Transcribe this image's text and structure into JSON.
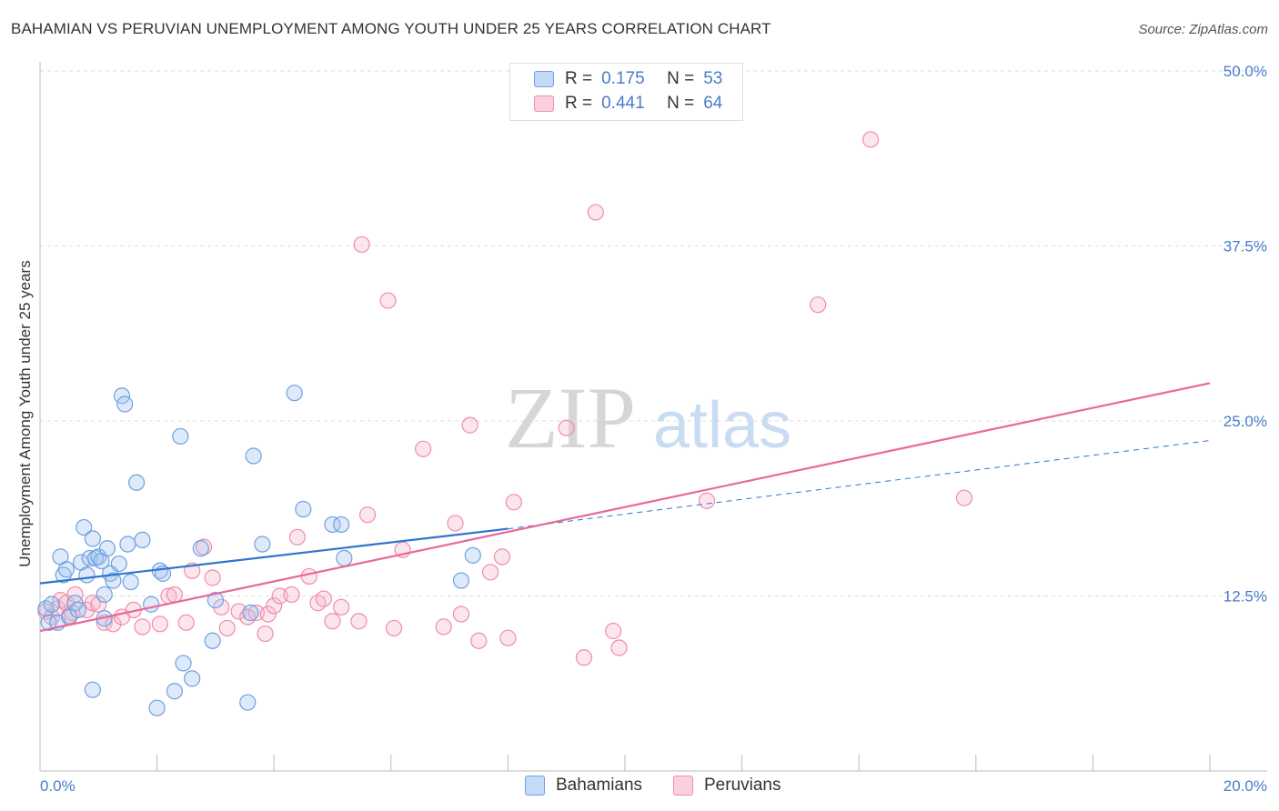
{
  "title": "BAHAMIAN VS PERUVIAN UNEMPLOYMENT AMONG YOUTH UNDER 25 YEARS CORRELATION CHART",
  "source": "Source: ZipAtlas.com",
  "watermark": {
    "zip": "ZIP",
    "atlas": "atlas"
  },
  "legend": [
    {
      "r_label": "R =",
      "r_value": "0.175",
      "n_label": "N =",
      "n_value": "53"
    },
    {
      "r_label": "R =",
      "r_value": "0.441",
      "n_label": "N =",
      "n_value": "64"
    }
  ],
  "chart_data": {
    "type": "scatter",
    "title": "BAHAMIAN VS PERUVIAN UNEMPLOYMENT AMONG YOUTH UNDER 25 YEARS CORRELATION CHART",
    "xlabel": "",
    "ylabel": "Unemployment Among Youth under 25 years",
    "xlim": [
      0,
      20
    ],
    "ylim": [
      0,
      50
    ],
    "x_tick_labels": [
      "0.0%",
      "20.0%"
    ],
    "y_ticks": [
      {
        "value": 12.5,
        "label": "12.5%"
      },
      {
        "value": 25,
        "label": "25.0%"
      },
      {
        "value": 37.5,
        "label": "37.5%"
      },
      {
        "value": 50,
        "label": "50.0%"
      }
    ],
    "colors": {
      "bahamians": "#6fa0e0",
      "peruvians": "#f08cab",
      "bahamians_line": "#2f74d0",
      "peruvians_line": "#e8689a"
    },
    "series": [
      {
        "name": "Bahamians",
        "r": 0.175,
        "n": 53,
        "trend": {
          "x0": 0,
          "y0": 13.4,
          "x1": 8.0,
          "y1": 17.3,
          "dash_x1": 20,
          "dash_y1": 23.6
        },
        "points": [
          [
            0.1,
            11.6
          ],
          [
            0.15,
            10.6
          ],
          [
            0.2,
            11.9
          ],
          [
            0.3,
            10.6
          ],
          [
            0.35,
            15.3
          ],
          [
            0.4,
            14.0
          ],
          [
            0.45,
            14.4
          ],
          [
            0.5,
            11.0
          ],
          [
            0.6,
            12.0
          ],
          [
            0.65,
            11.5
          ],
          [
            0.7,
            14.9
          ],
          [
            0.75,
            17.4
          ],
          [
            0.8,
            14.0
          ],
          [
            0.85,
            15.2
          ],
          [
            0.9,
            16.6
          ],
          [
            0.95,
            15.2
          ],
          [
            1.0,
            15.3
          ],
          [
            1.05,
            15.0
          ],
          [
            1.1,
            12.6
          ],
          [
            1.15,
            15.9
          ],
          [
            1.2,
            14.1
          ],
          [
            1.25,
            13.6
          ],
          [
            1.35,
            14.8
          ],
          [
            1.4,
            26.8
          ],
          [
            1.45,
            26.2
          ],
          [
            1.5,
            16.2
          ],
          [
            1.55,
            13.5
          ],
          [
            1.65,
            20.6
          ],
          [
            1.75,
            16.5
          ],
          [
            1.9,
            11.9
          ],
          [
            2.05,
            14.3
          ],
          [
            2.1,
            14.1
          ],
          [
            2.4,
            23.9
          ],
          [
            2.45,
            7.7
          ],
          [
            2.6,
            6.6
          ],
          [
            2.75,
            15.9
          ],
          [
            2.95,
            9.3
          ],
          [
            3.0,
            12.2
          ],
          [
            3.55,
            4.9
          ],
          [
            3.6,
            11.3
          ],
          [
            3.65,
            22.5
          ],
          [
            3.8,
            16.2
          ],
          [
            4.35,
            27.0
          ],
          [
            4.5,
            18.7
          ],
          [
            5.0,
            17.6
          ],
          [
            5.15,
            17.6
          ],
          [
            5.2,
            15.2
          ],
          [
            7.2,
            13.6
          ],
          [
            7.4,
            15.4
          ],
          [
            0.9,
            5.8
          ],
          [
            2.0,
            4.5
          ],
          [
            2.3,
            5.7
          ],
          [
            1.1,
            10.9
          ]
        ]
      },
      {
        "name": "Peruvians",
        "r": 0.441,
        "n": 64,
        "trend": {
          "x0": 0,
          "y0": 10.0,
          "x1": 20,
          "y1": 27.7
        },
        "points": [
          [
            0.1,
            11.4
          ],
          [
            0.2,
            11.0
          ],
          [
            0.3,
            11.6
          ],
          [
            0.35,
            12.2
          ],
          [
            0.45,
            12.0
          ],
          [
            0.5,
            11.1
          ],
          [
            0.55,
            11.3
          ],
          [
            0.6,
            12.6
          ],
          [
            0.8,
            11.5
          ],
          [
            0.9,
            12.0
          ],
          [
            1.0,
            11.9
          ],
          [
            1.1,
            10.6
          ],
          [
            1.25,
            10.5
          ],
          [
            1.4,
            11.0
          ],
          [
            1.6,
            11.5
          ],
          [
            1.75,
            10.3
          ],
          [
            2.05,
            10.5
          ],
          [
            2.2,
            12.5
          ],
          [
            2.3,
            12.6
          ],
          [
            2.5,
            10.6
          ],
          [
            2.6,
            14.3
          ],
          [
            2.8,
            16.0
          ],
          [
            2.95,
            13.8
          ],
          [
            3.1,
            11.7
          ],
          [
            3.2,
            10.2
          ],
          [
            3.4,
            11.4
          ],
          [
            3.55,
            11.0
          ],
          [
            3.7,
            11.3
          ],
          [
            3.85,
            9.8
          ],
          [
            3.9,
            11.2
          ],
          [
            4.0,
            11.8
          ],
          [
            4.1,
            12.5
          ],
          [
            4.3,
            12.6
          ],
          [
            4.4,
            16.7
          ],
          [
            4.6,
            13.9
          ],
          [
            4.75,
            12.0
          ],
          [
            4.85,
            12.3
          ],
          [
            5.0,
            10.7
          ],
          [
            5.15,
            11.7
          ],
          [
            5.45,
            10.7
          ],
          [
            5.5,
            37.6
          ],
          [
            5.6,
            18.3
          ],
          [
            5.95,
            33.6
          ],
          [
            6.05,
            10.2
          ],
          [
            6.2,
            15.8
          ],
          [
            6.55,
            23.0
          ],
          [
            6.9,
            10.3
          ],
          [
            7.1,
            17.7
          ],
          [
            7.2,
            11.2
          ],
          [
            7.35,
            24.7
          ],
          [
            7.5,
            9.3
          ],
          [
            7.7,
            14.2
          ],
          [
            7.9,
            15.3
          ],
          [
            8.1,
            19.2
          ],
          [
            8.0,
            9.5
          ],
          [
            9.0,
            24.5
          ],
          [
            9.3,
            8.1
          ],
          [
            9.5,
            39.9
          ],
          [
            9.8,
            10.0
          ],
          [
            9.9,
            8.8
          ],
          [
            11.4,
            19.3
          ],
          [
            13.3,
            33.3
          ],
          [
            14.2,
            45.1
          ],
          [
            15.8,
            19.5
          ]
        ]
      }
    ]
  },
  "bottom_legend": {
    "bahamians": "Bahamians",
    "peruvians": "Peruvians"
  }
}
